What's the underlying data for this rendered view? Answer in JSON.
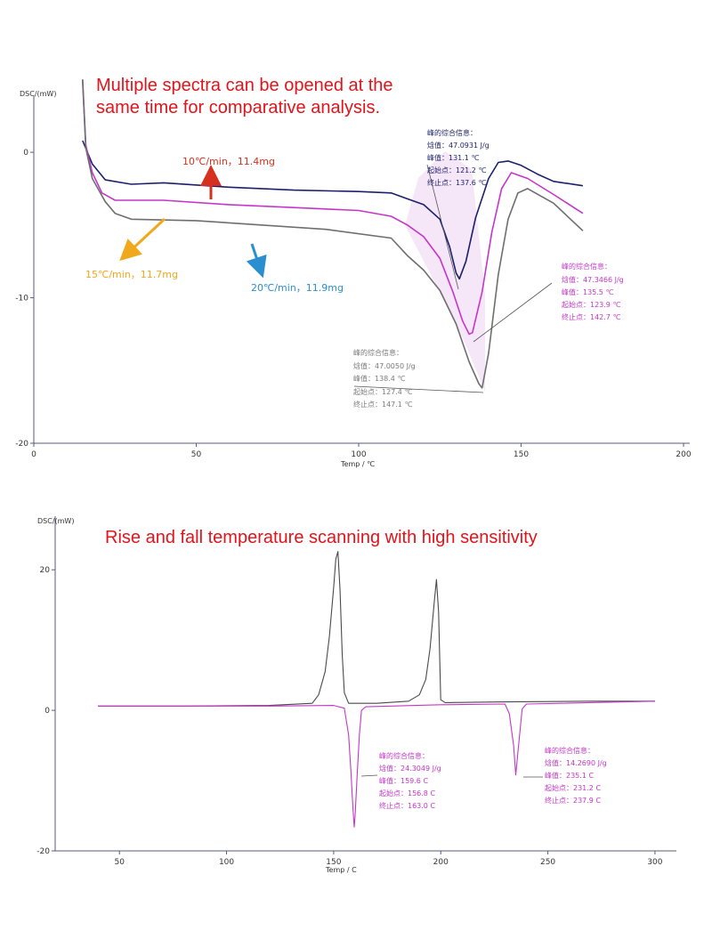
{
  "headline_top": [
    "Multiple spectra can be opened at the",
    "same time for comparative analysis."
  ],
  "headline_bottom": "Rise and fall temperature scanning with high sensitivity",
  "colors": {
    "headline": "#e0141b",
    "navy": "#1c1f6b",
    "magenta": "#c436c8",
    "gray": "#6e6e6e",
    "red_arrow": "#d6301e",
    "yellow_arrow": "#f0a81c",
    "blue_arrow": "#2a8fd0",
    "dark_trace": "#4a4a4a",
    "axis": "#5a5a7a"
  },
  "chart_data": [
    {
      "type": "line",
      "ylabel": "DSC/(mW)",
      "xlabel": "Temp / ℃",
      "xlim": [
        0,
        200
      ],
      "ylim": [
        -20,
        6
      ],
      "x_ticks": [
        "0",
        "50",
        "100",
        "150",
        "200"
      ],
      "y_ticks": [
        "0",
        "-10",
        "-20"
      ],
      "x_tick_values": [
        0,
        50,
        100,
        150,
        200
      ],
      "y_tick_values": [
        0,
        -10,
        -20
      ],
      "series": [
        {
          "name": "10℃/min，11.4mg",
          "color": "navy",
          "points": [
            [
              15,
              0.8
            ],
            [
              18,
              -0.8
            ],
            [
              22,
              -1.9
            ],
            [
              30,
              -2.2
            ],
            [
              40,
              -2.1
            ],
            [
              60,
              -2.4
            ],
            [
              80,
              -2.6
            ],
            [
              100,
              -2.7
            ],
            [
              110,
              -2.8
            ],
            [
              115,
              -3.2
            ],
            [
              120,
              -3.6
            ],
            [
              125,
              -4.6
            ],
            [
              128,
              -6.5
            ],
            [
              130,
              -8.3
            ],
            [
              131,
              -8.7
            ],
            [
              133,
              -7.5
            ],
            [
              136,
              -4.5
            ],
            [
              140,
              -1.8
            ],
            [
              143,
              -0.7
            ],
            [
              146,
              -0.6
            ],
            [
              150,
              -0.9
            ],
            [
              155,
              -1.5
            ],
            [
              160,
              -2.0
            ],
            [
              169,
              -2.3
            ]
          ]
        },
        {
          "name": "15℃/min，11.7mg",
          "color": "magenta",
          "points": [
            [
              15,
              5.0
            ],
            [
              16,
              0.5
            ],
            [
              18,
              -1.4
            ],
            [
              21,
              -2.8
            ],
            [
              25,
              -3.3
            ],
            [
              40,
              -3.3
            ],
            [
              60,
              -3.6
            ],
            [
              80,
              -3.8
            ],
            [
              100,
              -4.0
            ],
            [
              110,
              -4.4
            ],
            [
              115,
              -5.0
            ],
            [
              120,
              -5.8
            ],
            [
              125,
              -7.3
            ],
            [
              129,
              -9.6
            ],
            [
              132,
              -11.6
            ],
            [
              134,
              -12.5
            ],
            [
              135,
              -12.4
            ],
            [
              138,
              -9.6
            ],
            [
              141,
              -5.5
            ],
            [
              144,
              -2.5
            ],
            [
              147,
              -1.4
            ],
            [
              152,
              -1.8
            ],
            [
              160,
              -2.9
            ],
            [
              169,
              -4.2
            ]
          ]
        },
        {
          "name": "20℃/min，11.9mg",
          "color": "gray",
          "points": [
            [
              15,
              5.0
            ],
            [
              16,
              0.3
            ],
            [
              18,
              -1.8
            ],
            [
              22,
              -3.4
            ],
            [
              25,
              -4.2
            ],
            [
              30,
              -4.6
            ],
            [
              50,
              -4.7
            ],
            [
              70,
              -5.0
            ],
            [
              90,
              -5.3
            ],
            [
              110,
              -5.9
            ],
            [
              115,
              -7.1
            ],
            [
              120,
              -8.1
            ],
            [
              125,
              -9.5
            ],
            [
              130,
              -11.8
            ],
            [
              134,
              -14.4
            ],
            [
              137,
              -15.9
            ],
            [
              138,
              -16.2
            ],
            [
              140,
              -13.8
            ],
            [
              143,
              -8.4
            ],
            [
              146,
              -4.6
            ],
            [
              149,
              -2.8
            ],
            [
              152,
              -2.5
            ],
            [
              160,
              -3.5
            ],
            [
              169,
              -5.4
            ]
          ]
        }
      ],
      "series_labels": [
        {
          "text": "10℃/min，11.4mg",
          "color": "red_arrow"
        },
        {
          "text": "15℃/min，11.7mg",
          "color": "yellow_arrow"
        },
        {
          "text": "20℃/min，11.9mg",
          "color": "blue_arrow"
        }
      ],
      "annotations": [
        {
          "color": "navy",
          "lines": [
            "峰的综合信息：",
            "焓值：47.0931 J/g",
            "峰值：131.1 ℃",
            "起始点：121.2 ℃",
            "终止点：137.6 ℃"
          ]
        },
        {
          "color": "magenta",
          "lines": [
            "峰的综合信息：",
            "焓值：47.3466 J/g",
            "峰值：135.5 ℃",
            "起始点：123.9 ℃",
            "终止点：142.7 ℃"
          ]
        },
        {
          "color": "gray",
          "lines": [
            "峰的综合信息：",
            "焓值：47.0050 J/g",
            "峰值：138.4 ℃",
            "起始点：127.4 ℃",
            "终止点：147.1 ℃"
          ]
        }
      ]
    },
    {
      "type": "line",
      "ylabel": "DSC/(mW)",
      "xlabel": "Temp / C",
      "xlim": [
        20,
        310
      ],
      "ylim": [
        -20,
        28
      ],
      "x_ticks": [
        "50",
        "100",
        "150",
        "200",
        "250",
        "300"
      ],
      "y_ticks": [
        "20",
        "0",
        "-20"
      ],
      "x_tick_values": [
        50,
        100,
        150,
        200,
        250,
        300
      ],
      "y_tick_values": [
        20,
        0,
        -20
      ],
      "series": [
        {
          "name": "heating",
          "color": "dark_trace",
          "points": [
            [
              40,
              0.6
            ],
            [
              80,
              0.6
            ],
            [
              120,
              0.7
            ],
            [
              140,
              1.0
            ],
            [
              143,
              2.2
            ],
            [
              146,
              5.5
            ],
            [
              148,
              10.5
            ],
            [
              150,
              17.5
            ],
            [
              151,
              21.5
            ],
            [
              152,
              22.6
            ],
            [
              153,
              17.0
            ],
            [
              154,
              8.0
            ],
            [
              155,
              2.5
            ],
            [
              157,
              1.0
            ],
            [
              170,
              1.0
            ],
            [
              185,
              1.3
            ],
            [
              190,
              2.2
            ],
            [
              193,
              4.4
            ],
            [
              195,
              8.8
            ],
            [
              197,
              15.5
            ],
            [
              198,
              18.6
            ],
            [
              199,
              14.0
            ],
            [
              200,
              1.5
            ],
            [
              202,
              1.1
            ],
            [
              230,
              1.2
            ],
            [
              270,
              1.3
            ],
            [
              300,
              1.3
            ]
          ]
        },
        {
          "name": "cooling",
          "color": "magenta",
          "points": [
            [
              40,
              0.6
            ],
            [
              120,
              0.6
            ],
            [
              150,
              0.7
            ],
            [
              155,
              0.3
            ],
            [
              157,
              -3.5
            ],
            [
              158,
              -8.5
            ],
            [
              159,
              -14.0
            ],
            [
              159.6,
              -16.6
            ],
            [
              160,
              -15.0
            ],
            [
              161,
              -9.0
            ],
            [
              162,
              -3.5
            ],
            [
              163,
              0.0
            ],
            [
              165,
              0.5
            ],
            [
              200,
              0.8
            ],
            [
              230,
              0.9
            ],
            [
              232,
              -0.5
            ],
            [
              234,
              -5.0
            ],
            [
              235,
              -9.2
            ],
            [
              236,
              -6.0
            ],
            [
              238,
              0.2
            ],
            [
              240,
              0.9
            ],
            [
              300,
              1.3
            ]
          ]
        }
      ],
      "annotations": [
        {
          "color": "magenta",
          "lines": [
            "峰的综合信息：",
            "焓值：24.3049 J/g",
            "峰值：159.6 C",
            "起始点：156.8 C",
            "终止点：163.0 C"
          ]
        },
        {
          "color": "magenta",
          "lines": [
            "峰的综合信息：",
            "焓值：14.2690 J/g",
            "峰值：235.1 C",
            "起始点：231.2 C",
            "终止点：237.9 C"
          ]
        }
      ]
    }
  ]
}
